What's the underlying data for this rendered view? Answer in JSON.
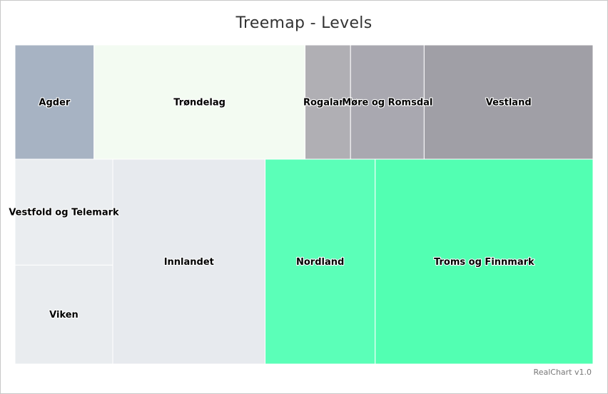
{
  "chart": {
    "title": "Treemap - Levels",
    "credits": "RealChart v1.0"
  },
  "chart_data": {
    "type": "treemap",
    "title": "Treemap - Levels",
    "levels": [
      {
        "name": "",
        "color": "#a7b3c3",
        "children": [
          {
            "name": "Agder",
            "value": 7.3,
            "color": "#a7b3c3"
          }
        ]
      },
      {
        "name": "",
        "color": "#f3fbf2",
        "children": [
          {
            "name": "Trøndelag",
            "value": 19.5,
            "color": "#f3fbf2"
          }
        ]
      },
      {
        "name": "",
        "color": "#a3a2a9",
        "children": [
          {
            "name": "Rogaland",
            "value": 4.2,
            "color": "#b0afb4"
          },
          {
            "name": "Møre og Romsdal",
            "value": 6.8,
            "color": "#a9a8b0"
          },
          {
            "name": "Vestland",
            "value": 15.6,
            "color": "#a09fa6"
          }
        ]
      },
      {
        "name": "",
        "color": "#e8ecef",
        "children": [
          {
            "name": "Vestfold og Telemark",
            "value": 13.6,
            "color": "#eaedf0"
          },
          {
            "name": "Viken",
            "value": 12.7,
            "color": "#e9ecef"
          },
          {
            "name": "Innlandet",
            "value": 41.0,
            "color": "#e7eaee"
          }
        ]
      },
      {
        "name": "",
        "color": "#52ffb2",
        "children": [
          {
            "name": "Nordland",
            "value": 29.6,
            "color": "#5bffb8"
          },
          {
            "name": "Troms og Finnmark",
            "value": 58.6,
            "color": "#52ffb2"
          }
        ]
      }
    ]
  }
}
